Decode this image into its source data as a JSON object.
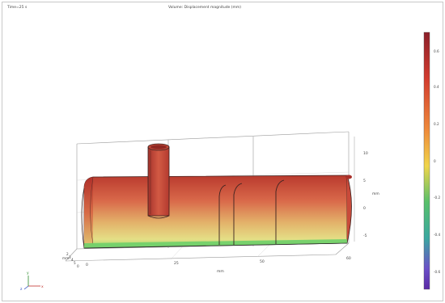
{
  "header": {
    "time_label": "Time=25 s",
    "plot_title": "Volume: Displacement magnitude (mm)"
  },
  "axes": {
    "x_ticks": [
      "0",
      "25",
      "50",
      "60"
    ],
    "x_unit": "mm",
    "y_ticks": [
      "0",
      "5",
      "4",
      "3",
      "2"
    ],
    "y_unit": "mm",
    "z_ticks": [
      "10",
      "5",
      "0",
      "-5"
    ],
    "z_unit": "mm"
  },
  "triad": {
    "x": "x",
    "y": "y",
    "z": "z"
  },
  "colorbar": {
    "tick_labels": [
      "0.6",
      "0.4",
      "0.2",
      "0",
      "-0.2",
      "-0.4",
      "-0.6"
    ],
    "colors": [
      "#8c1f2a",
      "#d23b2e",
      "#ef8a3a",
      "#f0d54a",
      "#58c06a",
      "#3aa8a0",
      "#6b4fc8",
      "#5a2aa6"
    ]
  }
}
